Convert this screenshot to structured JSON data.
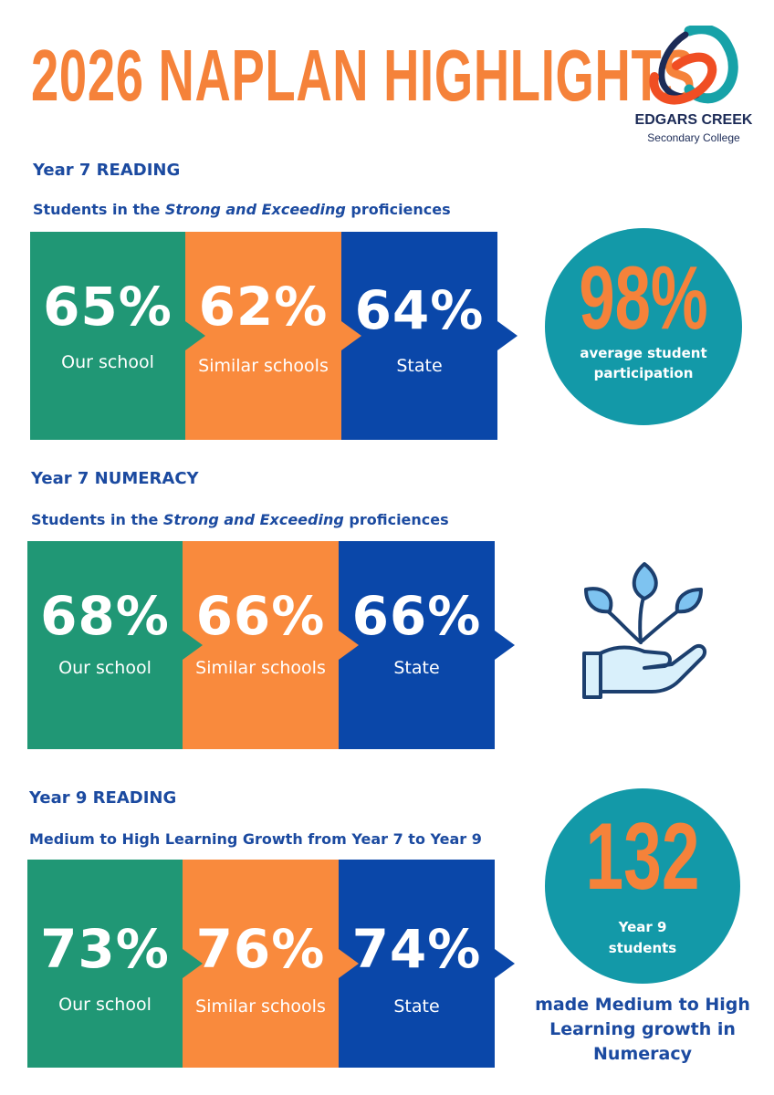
{
  "header": {
    "title": "2026 NAPLAN HIGHLIGHTS",
    "logo": {
      "name": "EDGARS CREEK",
      "subtitle": "Secondary College",
      "colors": {
        "orange": "#f04e23",
        "navy": "#1c2b57",
        "teal": "#17a2a8"
      }
    }
  },
  "colors": {
    "title_orange": "#f5823a",
    "heading_blue": "#1b4aa0",
    "green": "#209775",
    "orange": "#f98a3d",
    "blue": "#0a47a9",
    "teal_circle": "#1399a8"
  },
  "sections": [
    {
      "heading": "Year 7 READING",
      "subheading_pre": "Students in the ",
      "subheading_em": "Strong and Exceeding",
      "subheading_post": " proficiences",
      "stats": [
        {
          "value": "65%",
          "label": "Our school"
        },
        {
          "value": "62%",
          "label": "Similar schools"
        },
        {
          "value": "64%",
          "label": "State"
        }
      ]
    },
    {
      "heading": "Year 7 NUMERACY",
      "subheading_pre": "Students in the ",
      "subheading_em": "Strong and Exceeding",
      "subheading_post": " proficiences",
      "stats": [
        {
          "value": "68%",
          "label": "Our school"
        },
        {
          "value": "66%",
          "label": "Similar schools"
        },
        {
          "value": "66%",
          "label": "State"
        }
      ]
    },
    {
      "heading": "Year 9 READING",
      "subheading": "Medium to High Learning Growth from Year 7 to Year 9",
      "stats": [
        {
          "value": "73%",
          "label": "Our school"
        },
        {
          "value": "76%",
          "label": "Similar schools"
        },
        {
          "value": "74%",
          "label": "State"
        }
      ]
    }
  ],
  "participation": {
    "value": "98%",
    "line1": "average student",
    "line2": "participation"
  },
  "plant_icon": "hand-holding-plant-icon",
  "growth": {
    "value": "132",
    "line1": "Year 9",
    "line2": "students",
    "note_line1": "made Medium to High",
    "note_line2": "Learning growth in",
    "note_line3": "Numeracy"
  }
}
